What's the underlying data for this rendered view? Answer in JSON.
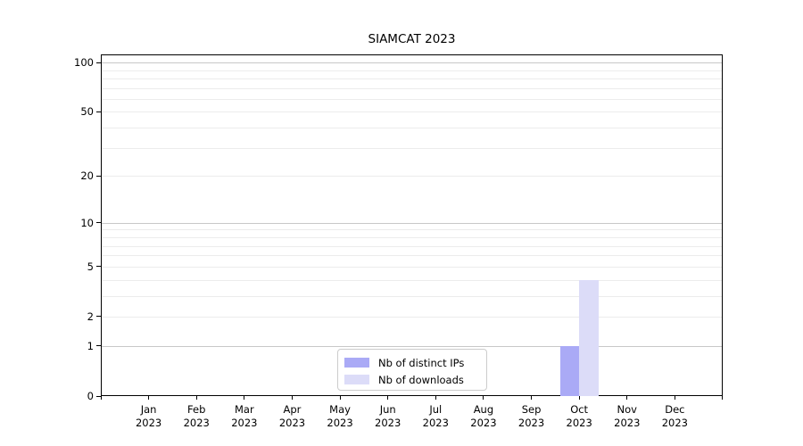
{
  "chart_data": {
    "type": "bar",
    "title": "SIAMCAT 2023",
    "x": {
      "months": [
        "Jan",
        "Feb",
        "Mar",
        "Apr",
        "May",
        "Jun",
        "Jul",
        "Aug",
        "Sep",
        "Oct",
        "Nov",
        "Dec"
      ],
      "year": "2023"
    },
    "categories": [
      "Jan 2023",
      "Feb 2023",
      "Mar 2023",
      "Apr 2023",
      "May 2023",
      "Jun 2023",
      "Jul 2023",
      "Aug 2023",
      "Sep 2023",
      "Oct 2023",
      "Nov 2023",
      "Dec 2023"
    ],
    "series": [
      {
        "name": "Nb of distinct IPs",
        "color": "#aaaaf6",
        "values": [
          0,
          0,
          0,
          0,
          0,
          0,
          0,
          0,
          0,
          1,
          0,
          0
        ]
      },
      {
        "name": "Nb of downloads",
        "color": "#dcdcf8",
        "values": [
          0,
          0,
          0,
          0,
          0,
          0,
          0,
          0,
          0,
          4,
          0,
          0
        ]
      }
    ],
    "yscale": "log10(1+v)",
    "y_ticks": [
      0,
      1,
      2,
      5,
      10,
      20,
      50,
      100
    ],
    "ylim": [
      0,
      112
    ],
    "grid": {
      "major_values": [
        1,
        10,
        100
      ],
      "minor_values": [
        2,
        3,
        4,
        5,
        6,
        7,
        8,
        9,
        20,
        30,
        40,
        50,
        60,
        70,
        80,
        90
      ],
      "major_color": "#c8c8c8",
      "minor_color": "#ececec"
    },
    "legend": {
      "position": "lower center"
    }
  },
  "style": {
    "background": "#ffffff",
    "spine_color": "#000000",
    "text_color": "#000000"
  }
}
